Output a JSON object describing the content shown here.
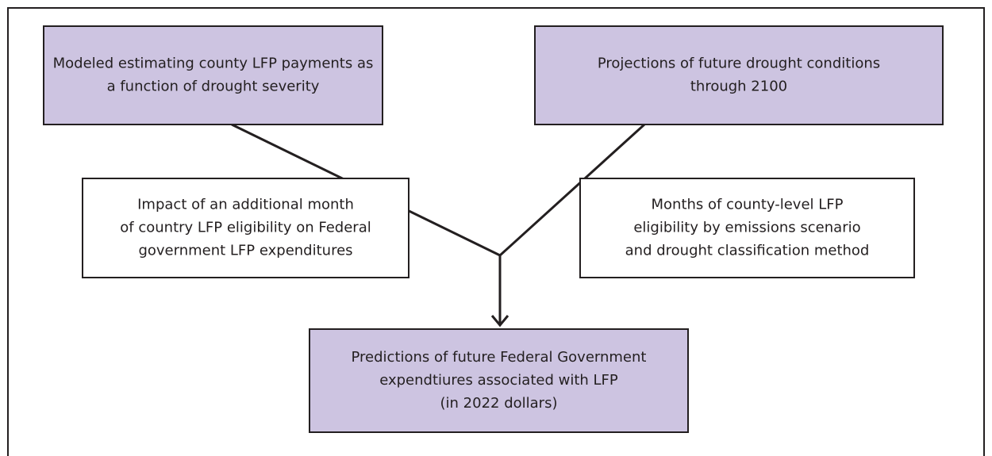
{
  "nodes": [
    {
      "lines": [
        "Modeled estimating county LFP payments as",
        "a function of drought severity"
      ]
    },
    {
      "lines": [
        "Projections of future drought conditions",
        "through 2100"
      ]
    },
    {
      "lines": [
        "Impact of an additional month",
        "of country LFP eligibility on Federal",
        "government LFP expenditures"
      ]
    },
    {
      "lines": [
        "Months of county-level LFP",
        "eligibility by emissions scenario",
        "and drought classification method"
      ]
    },
    {
      "lines": [
        "Predictions of future Federal Government",
        "expendtiures associated with LFP",
        "(in 2022 dollars)"
      ]
    }
  ]
}
